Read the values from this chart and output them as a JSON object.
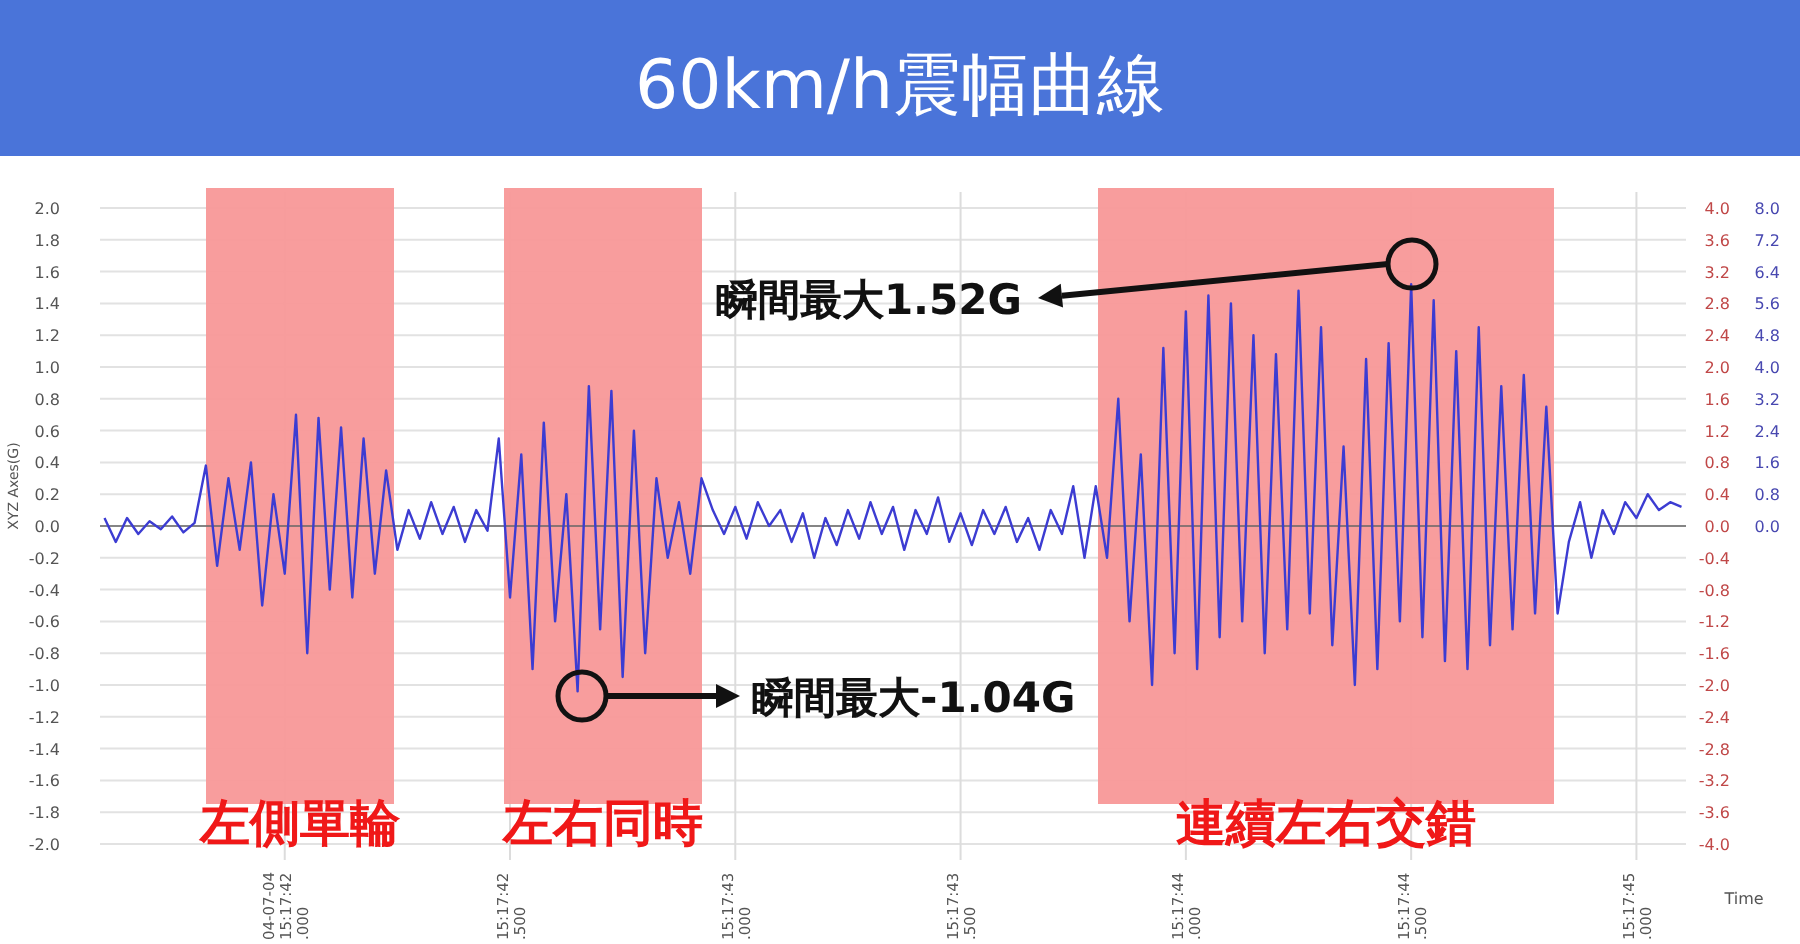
{
  "chart_data": {
    "type": "line",
    "title": "60km/h震幅曲線",
    "xlabel": "Time",
    "ylabel": "XYZ Axes(G)",
    "categories": [
      null,
      null,
      null,
      null,
      null,
      null,
      null,
      null,
      null,
      null,
      null,
      null,
      null,
      null,
      null,
      null,
      "04-07-04\n15:17:42\n.000",
      null,
      null,
      null,
      null,
      null,
      null,
      null,
      null,
      null,
      null,
      null,
      null,
      null,
      null,
      null,
      null,
      null,
      null,
      null,
      "15:17:42\n.500",
      null,
      null,
      null,
      null,
      null,
      null,
      null,
      null,
      null,
      null,
      null,
      null,
      null,
      null,
      null,
      null,
      null,
      null,
      null,
      "15:17:43\n.000",
      null,
      null,
      null,
      null,
      null,
      null,
      null,
      null,
      null,
      null,
      null,
      null,
      null,
      null,
      null,
      null,
      null,
      null,
      null,
      "15:17:43\n.500",
      null,
      null,
      null,
      null,
      null,
      null,
      null,
      null,
      null,
      null,
      null,
      null,
      null,
      null,
      null,
      null,
      null,
      null,
      null,
      "15:17:44\n.000",
      null,
      null,
      null,
      null,
      null,
      null,
      null,
      null,
      null,
      null,
      null,
      null,
      null,
      null,
      null,
      null,
      null,
      null,
      null,
      "15:17:44\n.500",
      null,
      null,
      null,
      null,
      null,
      null,
      null,
      null,
      null,
      null,
      null,
      null,
      null,
      null,
      null,
      null,
      null,
      null,
      null,
      "15:17:45\n.000",
      null,
      null,
      null,
      null
    ],
    "series": [
      {
        "color": "#3c3cd2",
        "values": [
          0.05,
          -0.1,
          0.05,
          -0.05,
          0.03,
          -0.02,
          0.06,
          -0.04,
          0.02,
          0.38,
          -0.25,
          0.3,
          -0.15,
          0.4,
          -0.5,
          0.2,
          -0.3,
          0.7,
          -0.8,
          0.68,
          -0.4,
          0.62,
          -0.45,
          0.55,
          -0.3,
          0.35,
          -0.15,
          0.1,
          -0.08,
          0.15,
          -0.05,
          0.12,
          -0.1,
          0.1,
          -0.03,
          0.55,
          -0.45,
          0.45,
          -0.9,
          0.65,
          -0.6,
          0.2,
          -1.04,
          0.88,
          -0.65,
          0.85,
          -0.95,
          0.6,
          -0.8,
          0.3,
          -0.2,
          0.15,
          -0.3,
          0.3,
          0.1,
          -0.05,
          0.12,
          -0.08,
          0.15,
          0.0,
          0.1,
          -0.1,
          0.08,
          -0.2,
          0.05,
          -0.12,
          0.1,
          -0.08,
          0.15,
          -0.05,
          0.12,
          -0.15,
          0.1,
          -0.05,
          0.18,
          -0.1,
          0.08,
          -0.12,
          0.1,
          -0.05,
          0.12,
          -0.1,
          0.05,
          -0.15,
          0.1,
          -0.05,
          0.25,
          -0.2,
          0.25,
          -0.2,
          0.8,
          -0.6,
          0.45,
          -1.0,
          1.12,
          -0.8,
          1.35,
          -0.9,
          1.45,
          -0.7,
          1.4,
          -0.6,
          1.2,
          -0.8,
          1.08,
          -0.65,
          1.48,
          -0.55,
          1.25,
          -0.75,
          0.5,
          -1.0,
          1.05,
          -0.9,
          1.15,
          -0.6,
          1.52,
          -0.7,
          1.42,
          -0.85,
          1.1,
          -0.9,
          1.25,
          -0.75,
          0.88,
          -0.65,
          0.95,
          -0.55,
          0.75,
          -0.55,
          -0.1,
          0.15,
          -0.2,
          0.1,
          -0.05,
          0.15,
          0.05,
          0.2,
          0.1,
          0.15,
          0.12
        ]
      }
    ],
    "ylim": [
      -2,
      2
    ],
    "yticks": [
      {
        "value": -2,
        "label": "-2.0"
      },
      -1.8,
      -1.6,
      -1.4,
      -1.2,
      {
        "value": -1,
        "label": "-1.0"
      },
      -0.8,
      -0.6,
      -0.4,
      -0.2,
      {
        "value": 0,
        "label": "0.0"
      },
      0.2,
      0.4,
      0.6,
      0.8,
      {
        "value": 1,
        "label": "1.0"
      },
      1.2,
      1.4,
      1.6,
      1.8,
      {
        "value": 2,
        "label": "2.0"
      }
    ],
    "y2lim": [
      -4,
      4
    ],
    "y2ticks": [
      {
        "value": -4,
        "label": "-4.0"
      },
      -3.6,
      -3.2,
      -2.8,
      -2.4,
      {
        "value": -2,
        "label": "-2.0"
      },
      -1.6,
      -1.2,
      -0.8,
      -0.4,
      {
        "value": 0,
        "label": "0.0"
      },
      0.4,
      0.8,
      1.2,
      1.6,
      {
        "value": 2,
        "label": "2.0"
      },
      2.4,
      2.8,
      3.2,
      3.6,
      {
        "value": 4,
        "label": "4.0"
      }
    ],
    "y3lim": [
      -8,
      8
    ],
    "y3ticks": [
      {
        "value": 0,
        "label": "0.0"
      },
      0.8,
      1.6,
      2.4,
      3.2,
      {
        "value": 4,
        "label": "4.0"
      },
      4.8,
      5.6,
      6.4,
      7.2,
      {
        "value": 8,
        "label": "8.0"
      }
    ],
    "annotations": [
      "左側單輪",
      "左右同時",
      "連續左右交錯",
      "瞬間最大1.52G",
      "瞬間最大-1.04G"
    ],
    "grid": true,
    "marker": "none",
    "line_style": "solid"
  }
}
